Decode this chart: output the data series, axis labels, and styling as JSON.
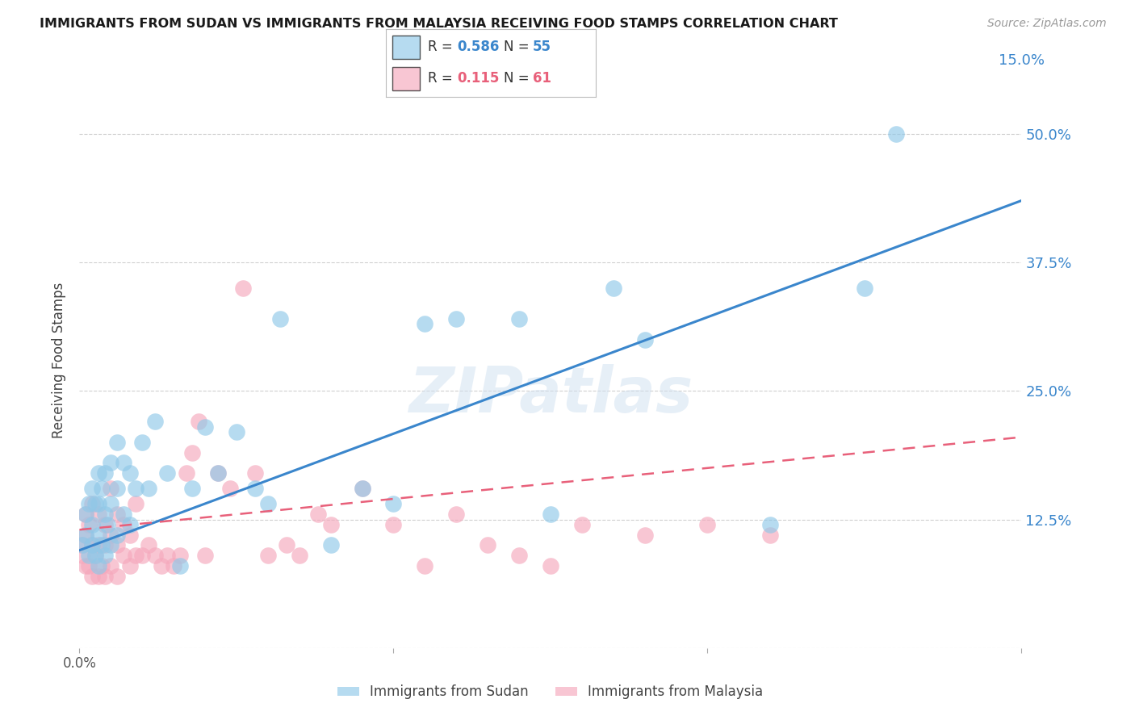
{
  "title": "IMMIGRANTS FROM SUDAN VS IMMIGRANTS FROM MALAYSIA RECEIVING FOOD STAMPS CORRELATION CHART",
  "source": "Source: ZipAtlas.com",
  "ylabel": "Receiving Food Stamps",
  "xlim": [
    0.0,
    0.15
  ],
  "ylim": [
    0.0,
    0.56
  ],
  "sudan_R": 0.586,
  "sudan_N": 55,
  "malaysia_R": 0.115,
  "malaysia_N": 61,
  "sudan_color": "#8fc8e8",
  "malaysia_color": "#f5a8bc",
  "sudan_line_color": "#3a86cc",
  "malaysia_line_color": "#e8607a",
  "watermark": "ZIPatlas",
  "background_color": "#ffffff",
  "grid_color": "#d0d0d0",
  "sudan_line_x0": 0.0,
  "sudan_line_y0": 0.095,
  "sudan_line_x1": 0.15,
  "sudan_line_y1": 0.435,
  "malaysia_line_x0": 0.0,
  "malaysia_line_y0": 0.115,
  "malaysia_line_x1": 0.15,
  "malaysia_line_y1": 0.205,
  "sudan_scatter_x": [
    0.0005,
    0.001,
    0.001,
    0.0015,
    0.0015,
    0.002,
    0.002,
    0.002,
    0.0025,
    0.0025,
    0.003,
    0.003,
    0.003,
    0.003,
    0.0035,
    0.0035,
    0.004,
    0.004,
    0.004,
    0.0045,
    0.005,
    0.005,
    0.005,
    0.006,
    0.006,
    0.006,
    0.007,
    0.007,
    0.008,
    0.008,
    0.009,
    0.01,
    0.011,
    0.012,
    0.014,
    0.016,
    0.018,
    0.02,
    0.022,
    0.025,
    0.028,
    0.03,
    0.032,
    0.04,
    0.045,
    0.05,
    0.055,
    0.06,
    0.07,
    0.075,
    0.085,
    0.09,
    0.11,
    0.125,
    0.13
  ],
  "sudan_scatter_y": [
    0.1,
    0.11,
    0.13,
    0.09,
    0.14,
    0.1,
    0.12,
    0.155,
    0.09,
    0.14,
    0.08,
    0.11,
    0.14,
    0.17,
    0.1,
    0.155,
    0.09,
    0.13,
    0.17,
    0.12,
    0.1,
    0.14,
    0.18,
    0.11,
    0.155,
    0.2,
    0.13,
    0.18,
    0.12,
    0.17,
    0.155,
    0.2,
    0.155,
    0.22,
    0.17,
    0.08,
    0.155,
    0.215,
    0.17,
    0.21,
    0.155,
    0.14,
    0.32,
    0.1,
    0.155,
    0.14,
    0.315,
    0.32,
    0.32,
    0.13,
    0.35,
    0.3,
    0.12,
    0.35,
    0.5
  ],
  "malaysia_scatter_x": [
    0.0003,
    0.0005,
    0.001,
    0.001,
    0.001,
    0.0015,
    0.0015,
    0.002,
    0.002,
    0.002,
    0.0025,
    0.003,
    0.003,
    0.003,
    0.0035,
    0.004,
    0.004,
    0.004,
    0.005,
    0.005,
    0.005,
    0.006,
    0.006,
    0.006,
    0.007,
    0.007,
    0.008,
    0.008,
    0.009,
    0.009,
    0.01,
    0.011,
    0.012,
    0.013,
    0.014,
    0.015,
    0.016,
    0.017,
    0.018,
    0.019,
    0.02,
    0.022,
    0.024,
    0.026,
    0.028,
    0.03,
    0.033,
    0.035,
    0.038,
    0.04,
    0.045,
    0.05,
    0.055,
    0.06,
    0.065,
    0.07,
    0.075,
    0.08,
    0.09,
    0.1,
    0.11
  ],
  "malaysia_scatter_y": [
    0.1,
    0.09,
    0.08,
    0.11,
    0.13,
    0.08,
    0.12,
    0.07,
    0.1,
    0.14,
    0.09,
    0.07,
    0.1,
    0.13,
    0.08,
    0.07,
    0.1,
    0.12,
    0.08,
    0.11,
    0.155,
    0.07,
    0.1,
    0.13,
    0.09,
    0.12,
    0.08,
    0.11,
    0.09,
    0.14,
    0.09,
    0.1,
    0.09,
    0.08,
    0.09,
    0.08,
    0.09,
    0.17,
    0.19,
    0.22,
    0.09,
    0.17,
    0.155,
    0.35,
    0.17,
    0.09,
    0.1,
    0.09,
    0.13,
    0.12,
    0.155,
    0.12,
    0.08,
    0.13,
    0.1,
    0.09,
    0.08,
    0.12,
    0.11,
    0.12,
    0.11
  ]
}
